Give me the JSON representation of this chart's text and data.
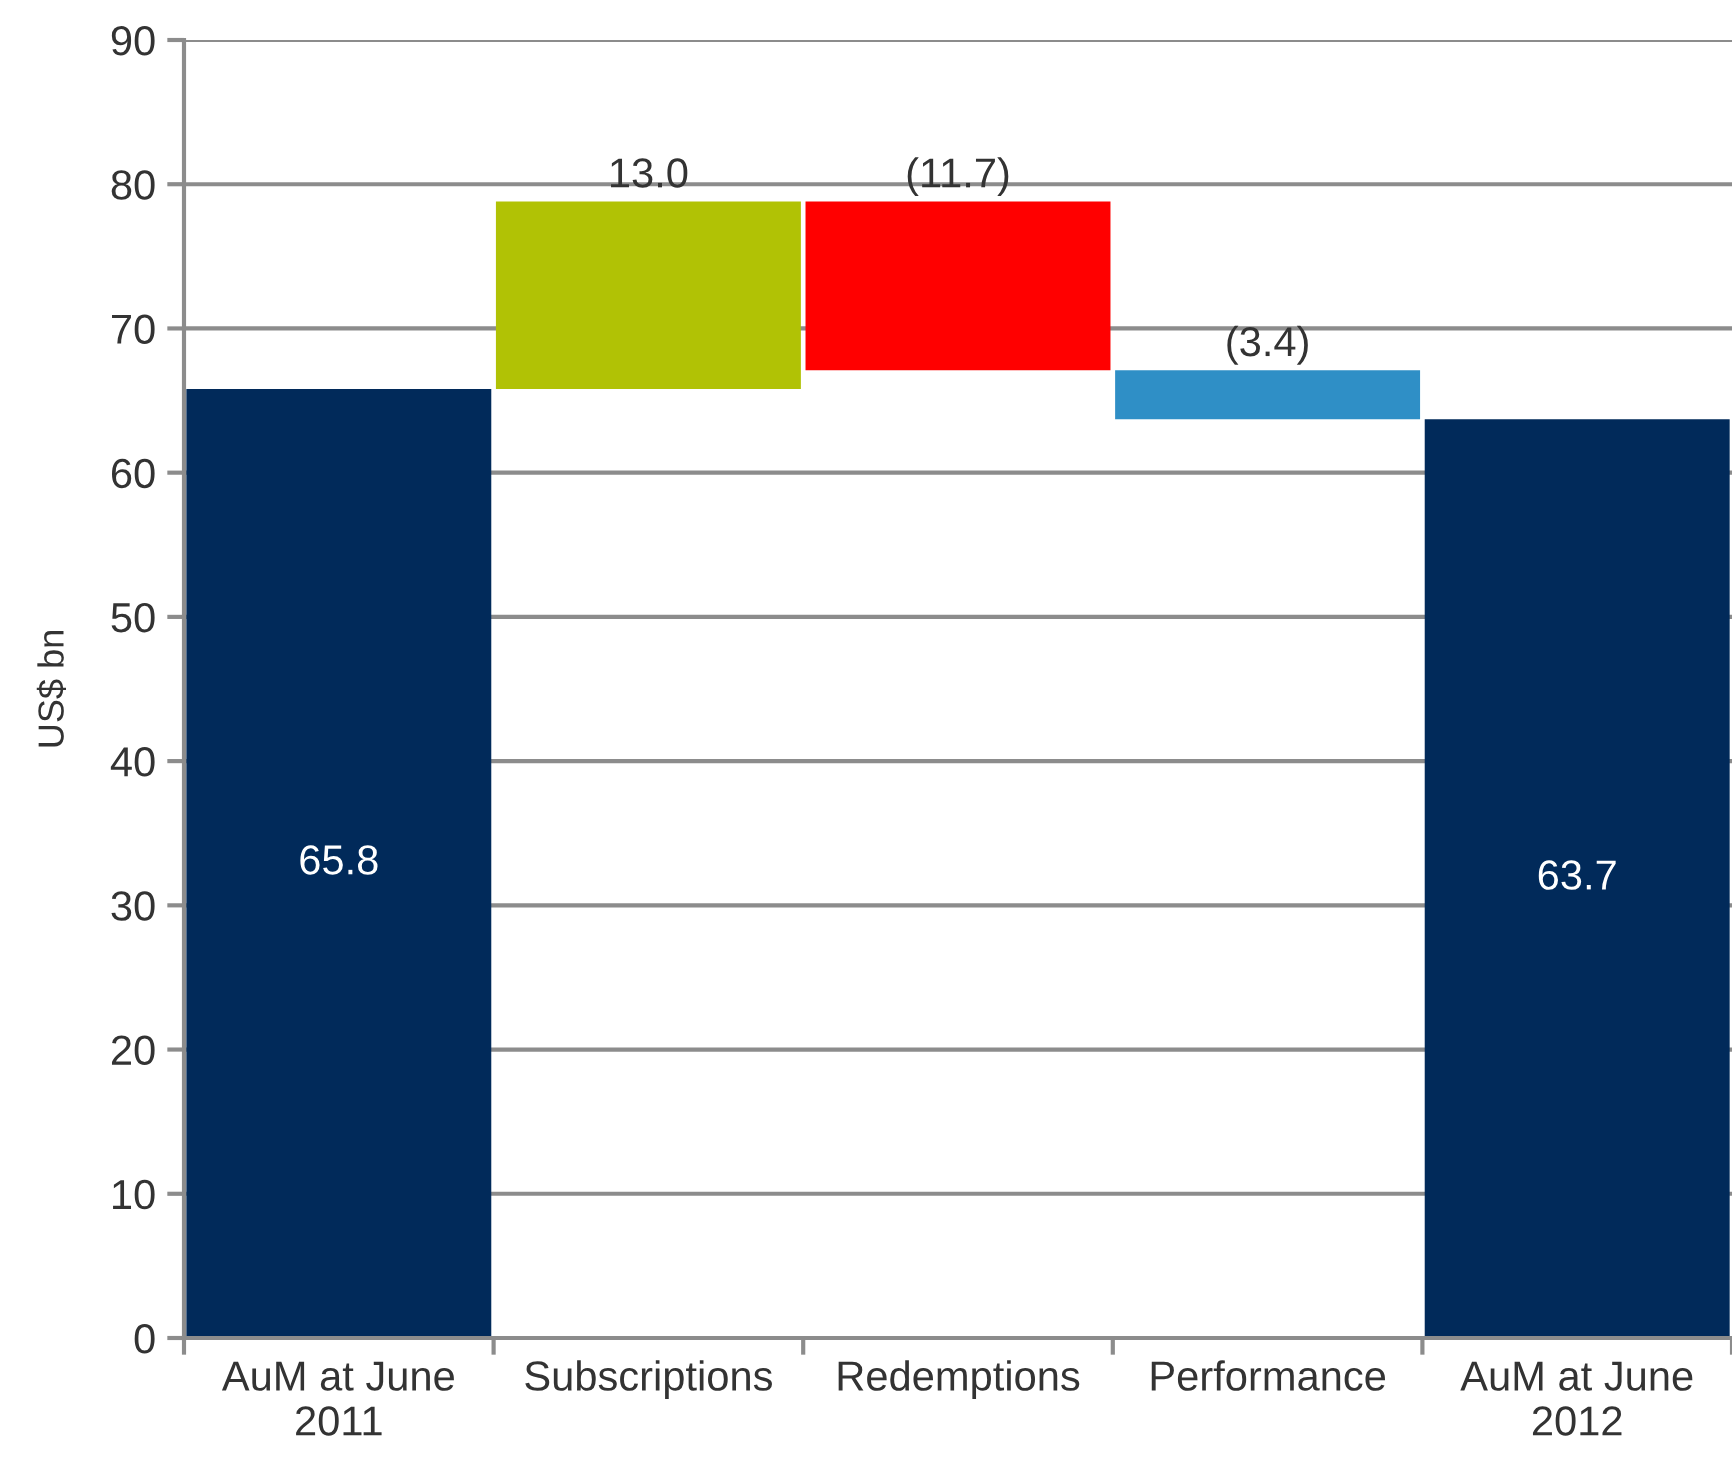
{
  "chart_data": {
    "type": "bar",
    "ylabel": "US$ bn",
    "categories": [
      "AuM at June\n2011",
      "Subscriptions",
      "Redemptions",
      "Performance",
      "AuM at June\n2012"
    ],
    "values": [
      65.8,
      13.0,
      -11.7,
      -3.4,
      63.7
    ],
    "base": [
      0,
      65.8,
      78.8,
      67.1,
      0
    ],
    "colors": [
      "#012a5a",
      "#b1c205",
      "#ff0000",
      "#2f8fc6",
      "#012a5a"
    ],
    "value_labels": [
      "65.8",
      "13.0",
      "(11.7)",
      "(3.4)",
      "63.7"
    ],
    "ylim": [
      0,
      90
    ],
    "yticks": [
      0,
      10,
      20,
      30,
      40,
      50,
      60,
      70,
      80,
      90
    ],
    "grid": "y"
  }
}
